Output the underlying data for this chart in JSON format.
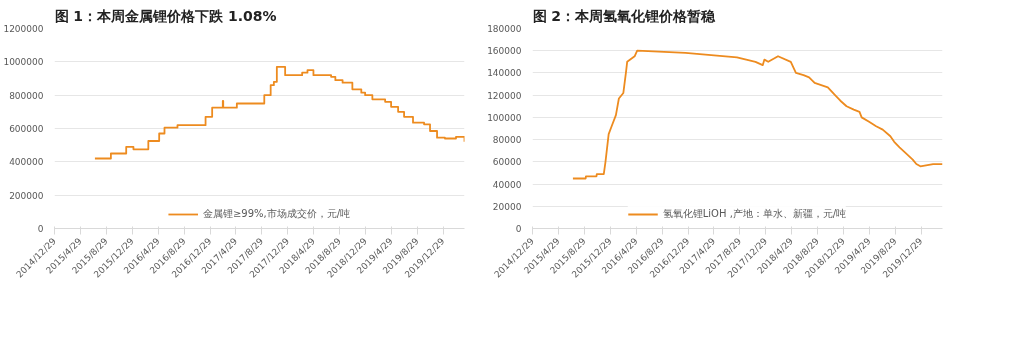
{
  "chart_data": [
    {
      "type": "step",
      "title": "图 1：本周金属锂价格下跌 1.08%",
      "grid": "y",
      "legend": "bottom",
      "marker": "none",
      "line_style": "solid",
      "xlim": [
        "2014-12-29",
        "2020-04-08"
      ],
      "xticks": [
        {
          "value": "2014-12-29",
          "label": "2014/12/29"
        },
        {
          "value": "2015-04-29",
          "label": "2015/4/29"
        },
        {
          "value": "2015-08-29",
          "label": "2015/8/29"
        },
        {
          "value": "2015-12-29",
          "label": "2015/12/29"
        },
        {
          "value": "2016-04-29",
          "label": "2016/4/29"
        },
        {
          "value": "2016-08-29",
          "label": "2016/8/29"
        },
        {
          "value": "2016-12-29",
          "label": "2016/12/29"
        },
        {
          "value": "2017-04-29",
          "label": "2017/4/29"
        },
        {
          "value": "2017-08-29",
          "label": "2017/8/29"
        },
        {
          "value": "2017-12-29",
          "label": "2017/12/29"
        },
        {
          "value": "2018-04-29",
          "label": "2018/4/29"
        },
        {
          "value": "2018-08-29",
          "label": "2018/8/29"
        },
        {
          "value": "2018-12-29",
          "label": "2018/12/29"
        },
        {
          "value": "2019-04-29",
          "label": "2019/4/29"
        },
        {
          "value": "2019-08-29",
          "label": "2019/8/29"
        },
        {
          "value": "2019-12-29",
          "label": "2019/12/29"
        }
      ],
      "ylim": [
        0,
        1200000
      ],
      "yticks": [
        0,
        200000,
        400000,
        600000,
        800000,
        1000000,
        1200000
      ],
      "series": [
        {
          "name": "金属锂≥99%,市场成交价，元/吨",
          "color": "#ed8b1f",
          "x": [
            "2015-07-07",
            "2015-09-20",
            "2015-12-01",
            "2016-01-04",
            "2016-03-14",
            "2016-05-04",
            "2016-05-29",
            "2016-07-29",
            "2016-12-08",
            "2017-01-08",
            "2017-02-27",
            "2017-03-01",
            "2017-05-04",
            "2017-09-10",
            "2017-10-10",
            "2017-10-25",
            "2017-11-08",
            "2017-12-17",
            "2018-03-07",
            "2018-04-01",
            "2018-04-29",
            "2018-07-21",
            "2018-08-10",
            "2018-09-13",
            "2018-10-29",
            "2018-12-10",
            "2018-12-28",
            "2019-01-31",
            "2019-04-01",
            "2019-04-29",
            "2019-06-01",
            "2019-06-29",
            "2019-08-10",
            "2019-10-01",
            "2019-10-29",
            "2019-12-01",
            "2020-01-07",
            "2020-02-28",
            "2020-04-08"
          ],
          "values": [
            420000,
            450000,
            490000,
            475000,
            525000,
            570000,
            605000,
            620000,
            670000,
            725000,
            765000,
            725000,
            750000,
            800000,
            860000,
            880000,
            970000,
            920000,
            935000,
            950000,
            920000,
            910000,
            890000,
            875000,
            835000,
            815000,
            800000,
            775000,
            760000,
            730000,
            700000,
            670000,
            635000,
            625000,
            585000,
            545000,
            540000,
            550000,
            520000
          ]
        }
      ]
    },
    {
      "type": "line",
      "title": "图 2：本周氢氧化锂价格暂稳",
      "grid": "y",
      "legend": "bottom",
      "marker": "none",
      "line_style": "solid",
      "xlim": [
        "2014-12-29",
        "2020-04-08"
      ],
      "xticks": [
        {
          "value": "2014-12-29",
          "label": "2014/12/29"
        },
        {
          "value": "2015-04-29",
          "label": "2015/4/29"
        },
        {
          "value": "2015-08-29",
          "label": "2015/8/29"
        },
        {
          "value": "2015-12-29",
          "label": "2015/12/29"
        },
        {
          "value": "2016-04-29",
          "label": "2016/4/29"
        },
        {
          "value": "2016-08-29",
          "label": "2016/8/29"
        },
        {
          "value": "2016-12-29",
          "label": "2016/12/29"
        },
        {
          "value": "2017-04-29",
          "label": "2017/4/29"
        },
        {
          "value": "2017-08-29",
          "label": "2017/8/29"
        },
        {
          "value": "2017-12-29",
          "label": "2017/12/29"
        },
        {
          "value": "2018-04-29",
          "label": "2018/4/29"
        },
        {
          "value": "2018-08-29",
          "label": "2018/8/29"
        },
        {
          "value": "2018-12-29",
          "label": "2018/12/29"
        },
        {
          "value": "2019-04-29",
          "label": "2019/4/29"
        },
        {
          "value": "2019-08-29",
          "label": "2019/8/29"
        },
        {
          "value": "2019-12-29",
          "label": "2019/12/29"
        }
      ],
      "ylim": [
        0,
        180000
      ],
      "yticks": [
        0,
        20000,
        40000,
        60000,
        80000,
        100000,
        120000,
        140000,
        160000,
        180000
      ],
      "series": [
        {
          "name": "氢氧化锂LiOH ,产地：单水、新疆，元/吨",
          "color": "#ed8b1f",
          "x": [
            "2015-07-07",
            "2015-09-05",
            "2015-09-06",
            "2015-10-26",
            "2015-10-27",
            "2015-11-29",
            "2015-12-07",
            "2015-12-22",
            "2016-01-05",
            "2016-01-25",
            "2016-02-08",
            "2016-02-29",
            "2016-03-12",
            "2016-03-18",
            "2016-04-22",
            "2016-05-04",
            "2016-12-17",
            "2017-08-16",
            "2017-11-11",
            "2017-12-15",
            "2017-12-23",
            "2018-01-10",
            "2018-02-25",
            "2018-04-26",
            "2018-05-20",
            "2018-06-25",
            "2018-07-21",
            "2018-08-16",
            "2018-10-17",
            "2018-11-20",
            "2018-12-15",
            "2019-01-13",
            "2019-02-16",
            "2019-03-15",
            "2019-03-25",
            "2019-04-29",
            "2019-06-01",
            "2019-07-02",
            "2019-08-07",
            "2019-08-25",
            "2019-09-19",
            "2019-10-17",
            "2019-11-20",
            "2019-12-07",
            "2019-12-26",
            "2020-02-24",
            "2020-04-08"
          ],
          "values": [
            45000,
            45000,
            47000,
            47000,
            49000,
            49000,
            60000,
            85000,
            92000,
            102000,
            117000,
            122000,
            140000,
            150000,
            155000,
            160000,
            158000,
            154000,
            150000,
            147000,
            152000,
            150000,
            155000,
            150000,
            140000,
            138000,
            136000,
            131000,
            127000,
            120000,
            115000,
            110000,
            107000,
            105000,
            100000,
            96000,
            92000,
            89000,
            83000,
            78000,
            73000,
            68000,
            62000,
            58000,
            56000,
            58000,
            58000
          ]
        }
      ]
    }
  ]
}
